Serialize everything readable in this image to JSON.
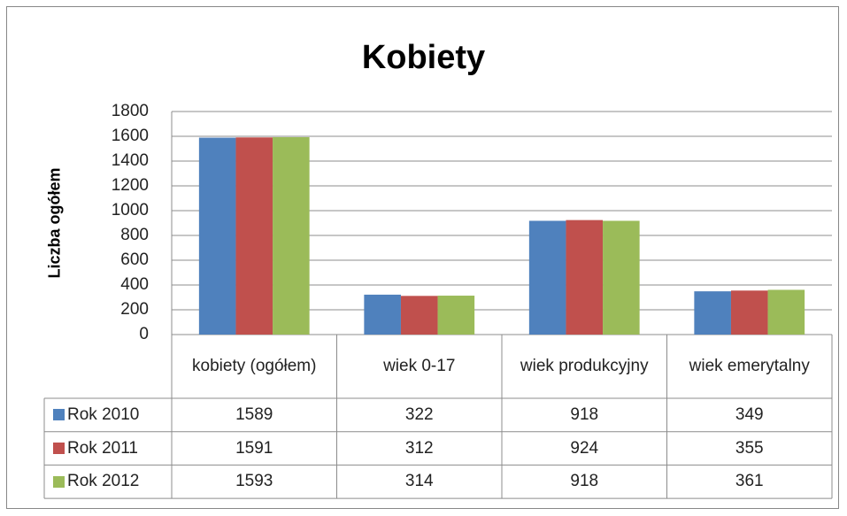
{
  "chart_data": {
    "type": "bar",
    "title": "Kobiety",
    "y_label": "Liczba ogółem",
    "categories": [
      "kobiety (ogółem)",
      "wiek 0-17",
      "wiek produkcyjny",
      "wiek emerytalny"
    ],
    "series": [
      {
        "name": "Rok 2010",
        "color": "#4f81bd",
        "values": [
          1589,
          322,
          918,
          349
        ]
      },
      {
        "name": "Rok 2011",
        "color": "#c0504d",
        "values": [
          1591,
          312,
          924,
          355
        ]
      },
      {
        "name": "Rok 2012",
        "color": "#9bbb59",
        "values": [
          1593,
          314,
          918,
          361
        ]
      }
    ],
    "ylim": [
      0,
      1800
    ],
    "yticks": [
      0,
      200,
      400,
      600,
      800,
      1000,
      1200,
      1400,
      1600,
      1800
    ],
    "grid": true,
    "data_table": true
  }
}
